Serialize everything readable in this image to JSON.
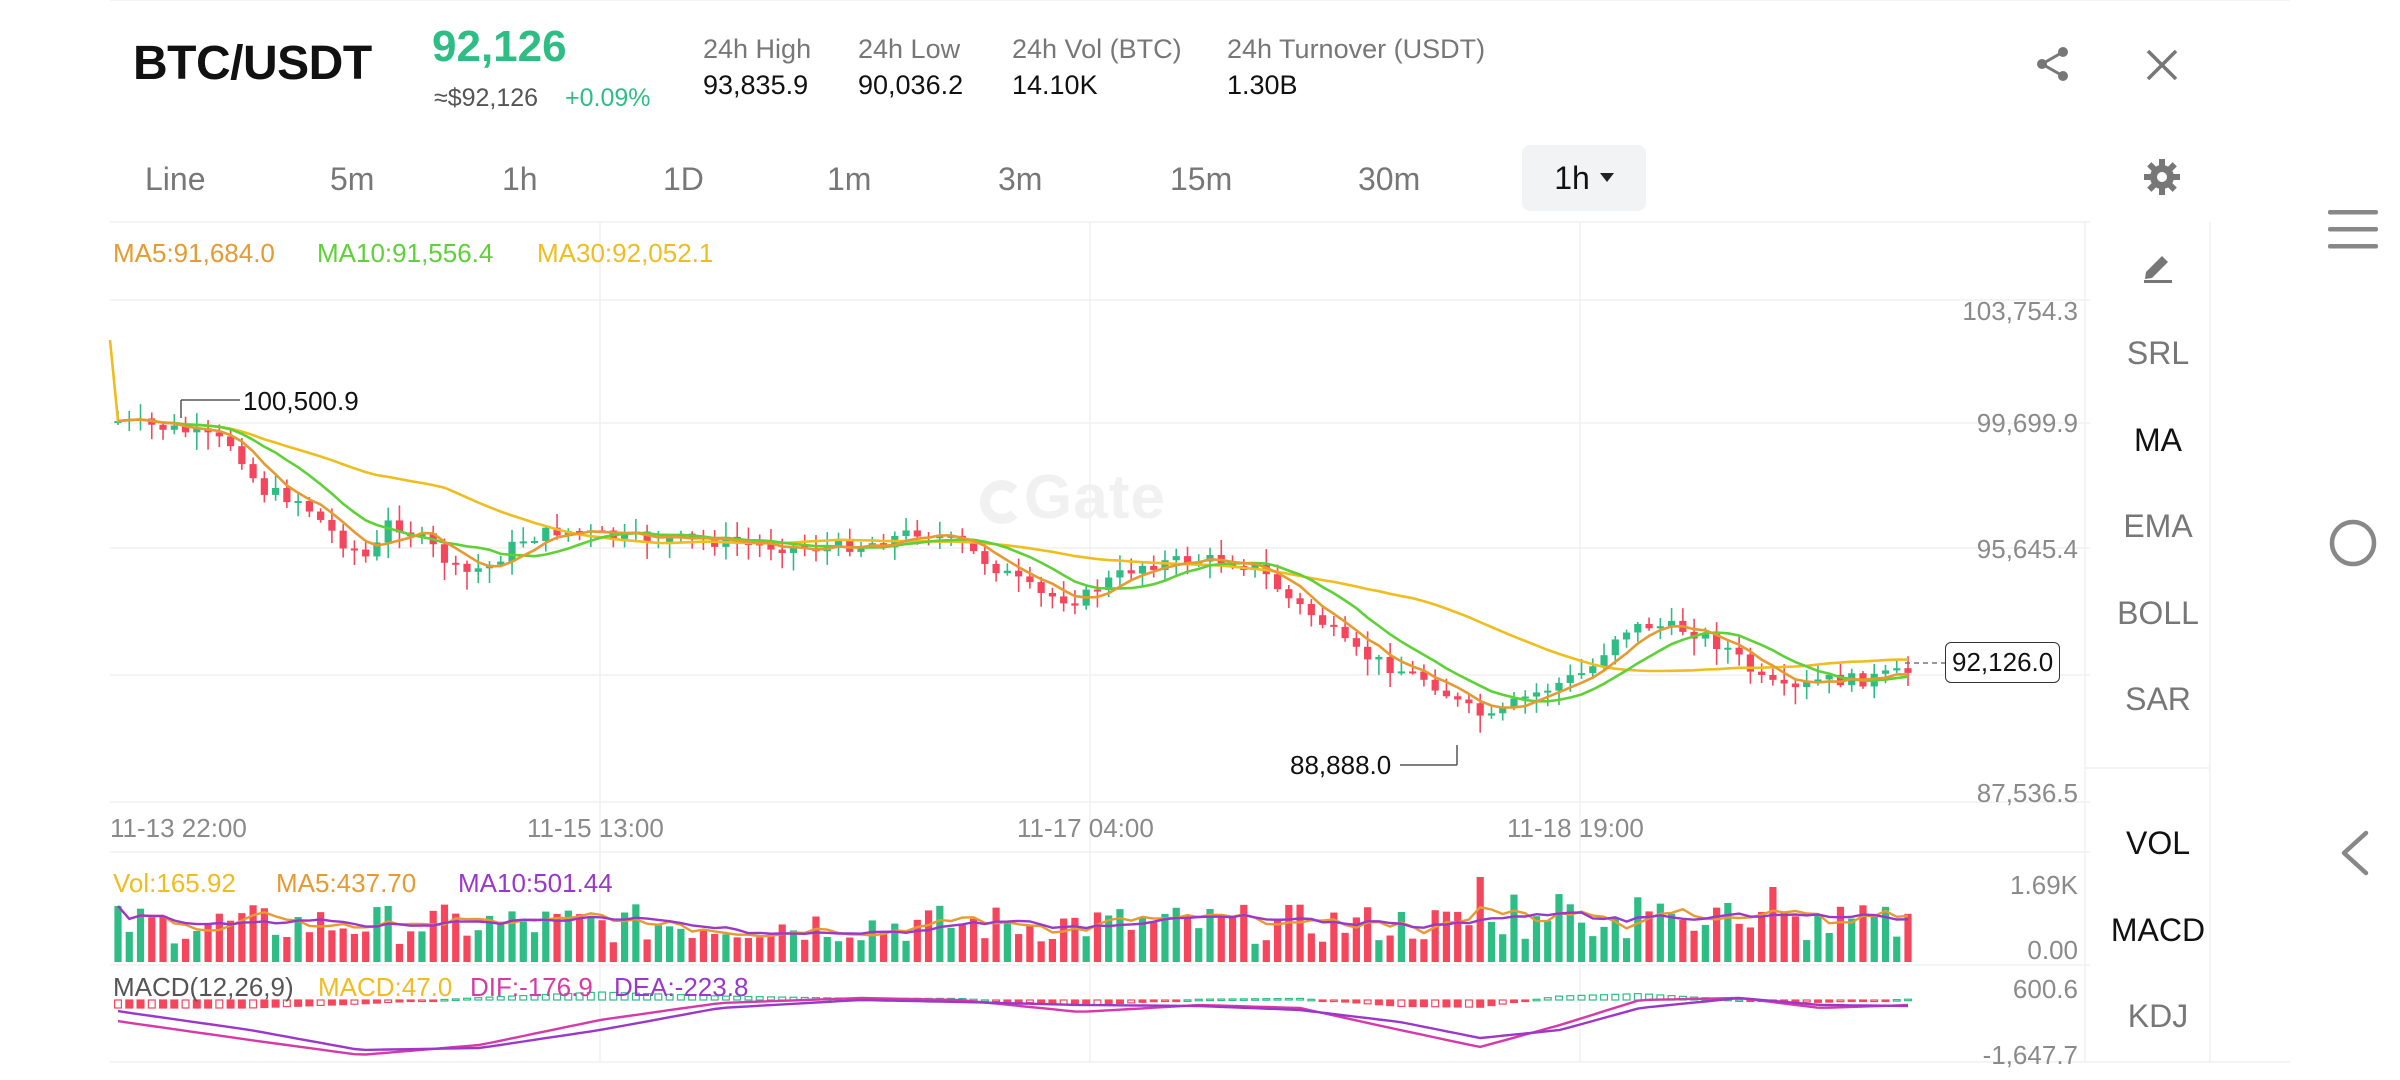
{
  "header": {
    "pair": "BTC/USDT",
    "price": "92,126",
    "price_usd": "≈$92,126",
    "change": "+0.09%",
    "stats": [
      {
        "label": "24h High",
        "value": "93,835.9"
      },
      {
        "label": "24h Low",
        "value": "90,036.2"
      },
      {
        "label": "24h Vol (BTC)",
        "value": "14.10K"
      },
      {
        "label": "24h Turnover (USDT)",
        "value": "1.30B"
      }
    ],
    "icons": {
      "share": "share-icon",
      "close": "close-icon"
    }
  },
  "timeframes": {
    "items": [
      "Line",
      "5m",
      "1h",
      "1D",
      "1m",
      "3m",
      "15m",
      "30m"
    ],
    "active": "1h",
    "settings_icon": "gear-icon"
  },
  "ma_legend": {
    "ma5": "MA5:91,684.0",
    "ma10": "MA10:91,556.4",
    "ma30": "MA30:92,052.1"
  },
  "watermark": "Gate",
  "price_axis": [
    "103,754.3",
    "99,699.9",
    "95,645.4",
    "87,536.5"
  ],
  "time_axis": [
    "11-13 22:00",
    "11-15 13:00",
    "11-17 04:00",
    "11-18 19:00"
  ],
  "annotations": {
    "high": "100,500.9",
    "low": "88,888.0",
    "last": "92,126.0"
  },
  "volume": {
    "vol": "Vol:165.92",
    "ma5": "MA5:437.70",
    "ma10": "MA10:501.44",
    "axis_top": "1.69K",
    "axis_bottom": "0.00"
  },
  "macd": {
    "label": "MACD(12,26,9)",
    "macd": "MACD:47.0",
    "dif": "DIF:-176.9",
    "dea": "DEA:-223.8",
    "axis_top": "600.6",
    "axis_bottom": "-1,647.7"
  },
  "indicators": {
    "draw_icon": "pencil-icon",
    "main": [
      "SRL",
      "MA",
      "EMA",
      "BOLL",
      "SAR"
    ],
    "sub": [
      "VOL",
      "MACD",
      "KDJ"
    ],
    "active": [
      "MA",
      "VOL",
      "MACD"
    ]
  },
  "colors": {
    "up": "#2ebd85",
    "down": "#f6465d",
    "ma5": "#e69a30",
    "ma10": "#5ed137",
    "ma30": "#efbd1e",
    "macd_dif": "#d63aa8",
    "macd_dea": "#9b38c9"
  },
  "system_nav": {
    "menu": "menu-icon",
    "home": "home-circle-icon",
    "back": "back-chevron-icon"
  }
}
